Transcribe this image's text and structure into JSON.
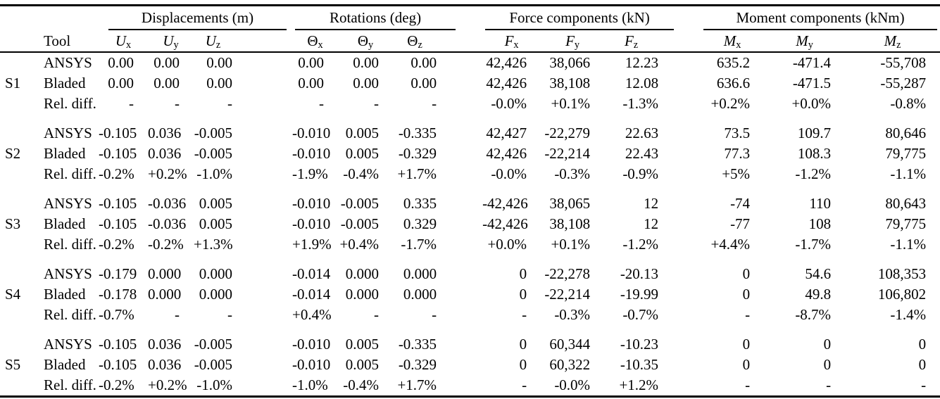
{
  "table": {
    "tool_header": "Tool",
    "groups": [
      {
        "label": "Displacements (m)"
      },
      {
        "label": "Rotations (deg)"
      },
      {
        "label": "Force components (kN)"
      },
      {
        "label": "Moment components (kNm)"
      }
    ],
    "columns": [
      {
        "symbol": "U",
        "sub": "x",
        "italic": true
      },
      {
        "symbol": "U",
        "sub": "y",
        "italic": true
      },
      {
        "symbol": "U",
        "sub": "z",
        "italic": true
      },
      {
        "symbol": "Θ",
        "sub": "x",
        "italic": false
      },
      {
        "symbol": "Θ",
        "sub": "y",
        "italic": false
      },
      {
        "symbol": "Θ",
        "sub": "z",
        "italic": false
      },
      {
        "symbol": "F",
        "sub": "x",
        "italic": true
      },
      {
        "symbol": "F",
        "sub": "y",
        "italic": true
      },
      {
        "symbol": "F",
        "sub": "z",
        "italic": true
      },
      {
        "symbol": "M",
        "sub": "x",
        "italic": true
      },
      {
        "symbol": "M",
        "sub": "y",
        "italic": true
      },
      {
        "symbol": "M",
        "sub": "z",
        "italic": true
      }
    ],
    "blocks": [
      {
        "case": "S1",
        "rows": [
          {
            "tool": "ANSYS",
            "values": [
              "0.00",
              "0.00",
              "0.00",
              "0.00",
              "0.00",
              "0.00",
              "42,426",
              "38,066",
              "12.23",
              "635.2",
              "-471.4",
              "-55,708"
            ]
          },
          {
            "tool": "Bladed",
            "values": [
              "0.00",
              "0.00",
              "0.00",
              "0.00",
              "0.00",
              "0.00",
              "42,426",
              "38,108",
              "12.08",
              "636.6",
              "-471.5",
              "-55,287"
            ]
          },
          {
            "tool": "Rel. diff.",
            "values": [
              "-",
              "-",
              "-",
              "-",
              "-",
              "-",
              "-0.0%",
              "+0.1%",
              "-1.3%",
              "+0.2%",
              "+0.0%",
              "-0.8%"
            ]
          }
        ]
      },
      {
        "case": "S2",
        "rows": [
          {
            "tool": "ANSYS",
            "values": [
              "-0.105",
              "0.036",
              "-0.005",
              "-0.010",
              "0.005",
              "-0.335",
              "42,427",
              "-22,279",
              "22.63",
              "73.5",
              "109.7",
              "80,646"
            ]
          },
          {
            "tool": "Bladed",
            "values": [
              "-0.105",
              "0.036",
              "-0.005",
              "-0.010",
              "0.005",
              "-0.329",
              "42,426",
              "-22,214",
              "22.43",
              "77.3",
              "108.3",
              "79,775"
            ]
          },
          {
            "tool": "Rel. diff.",
            "values": [
              "-0.2%",
              "+0.2%",
              "-1.0%",
              "-1.9%",
              "-0.4%",
              "+1.7%",
              "-0.0%",
              "-0.3%",
              "-0.9%",
              "+5%",
              "-1.2%",
              "-1.1%"
            ]
          }
        ]
      },
      {
        "case": "S3",
        "rows": [
          {
            "tool": "ANSYS",
            "values": [
              "-0.105",
              "-0.036",
              "0.005",
              "-0.010",
              "-0.005",
              "0.335",
              "-42,426",
              "38,065",
              "12",
              "-74",
              "110",
              "80,643"
            ]
          },
          {
            "tool": "Bladed",
            "values": [
              "-0.105",
              "-0.036",
              "0.005",
              "-0.010",
              "-0.005",
              "0.329",
              "-42,426",
              "38,108",
              "12",
              "-77",
              "108",
              "79,775"
            ]
          },
          {
            "tool": "Rel. diff.",
            "values": [
              "-0.2%",
              "-0.2%",
              "+1.3%",
              "+1.9%",
              "+0.4%",
              "-1.7%",
              "+0.0%",
              "+0.1%",
              "-1.2%",
              "+4.4%",
              "-1.7%",
              "-1.1%"
            ]
          }
        ]
      },
      {
        "case": "S4",
        "rows": [
          {
            "tool": "ANSYS",
            "values": [
              "-0.179",
              "0.000",
              "0.000",
              "-0.014",
              "0.000",
              "0.000",
              "0",
              "-22,278",
              "-20.13",
              "0",
              "54.6",
              "108,353"
            ]
          },
          {
            "tool": "Bladed",
            "values": [
              "-0.178",
              "0.000",
              "0.000",
              "-0.014",
              "0.000",
              "0.000",
              "0",
              "-22,214",
              "-19.99",
              "0",
              "49.8",
              "106,802"
            ]
          },
          {
            "tool": "Rel. diff.",
            "values": [
              "-0.7%",
              "-",
              "-",
              "+0.4%",
              "-",
              "-",
              "-",
              "-0.3%",
              "-0.7%",
              "-",
              "-8.7%",
              "-1.4%"
            ]
          }
        ]
      },
      {
        "case": "S5",
        "rows": [
          {
            "tool": "ANSYS",
            "values": [
              "-0.105",
              "0.036",
              "-0.005",
              "-0.010",
              "0.005",
              "-0.335",
              "0",
              "60,344",
              "-10.23",
              "0",
              "0",
              "0"
            ]
          },
          {
            "tool": "Bladed",
            "values": [
              "-0.105",
              "0.036",
              "-0.005",
              "-0.010",
              "0.005",
              "-0.329",
              "0",
              "60,322",
              "-10.35",
              "0",
              "0",
              "0"
            ]
          },
          {
            "tool": "Rel. diff.",
            "values": [
              "-0.2%",
              "+0.2%",
              "-1.0%",
              "-1.0%",
              "-0.4%",
              "+1.7%",
              "-",
              "-0.0%",
              "+1.2%",
              "-",
              "-",
              "-"
            ]
          }
        ]
      }
    ]
  },
  "colors": {
    "text": "#000000",
    "background": "#ffffff",
    "rule": "#000000"
  }
}
